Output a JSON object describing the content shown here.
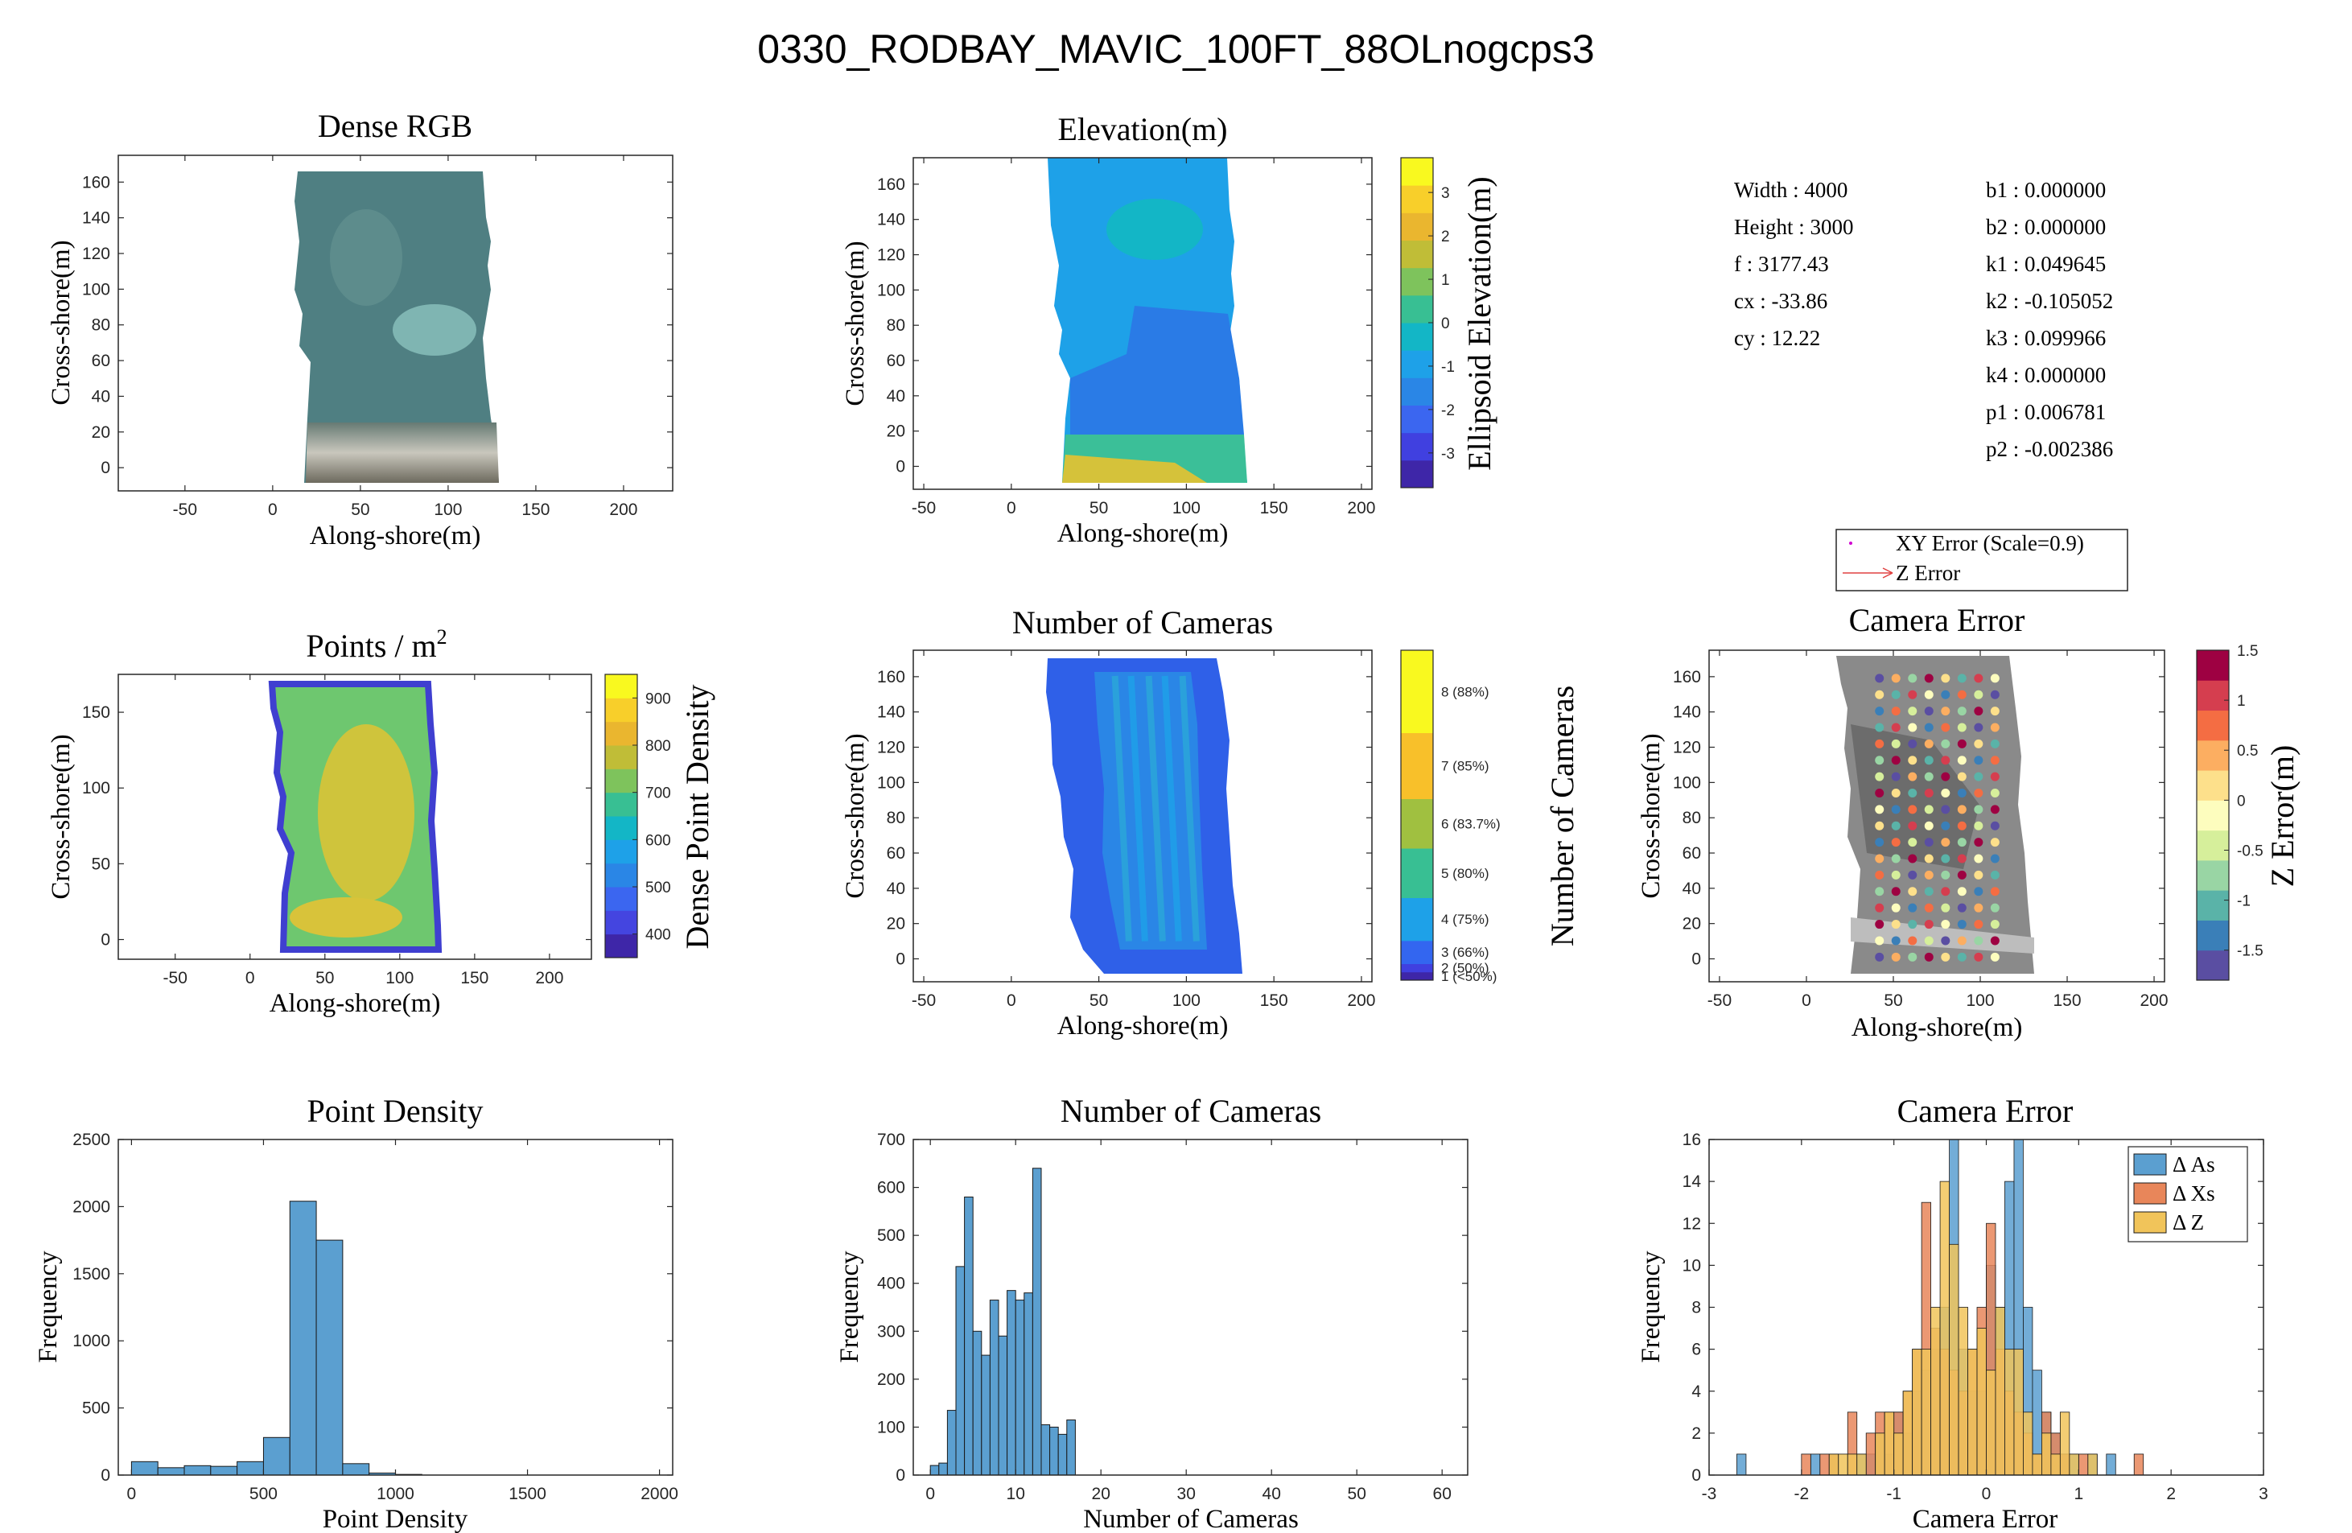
{
  "figure": {
    "title": "0330_RODBAY_MAVIC_100FT_88OLnogcps3",
    "colors": {
      "histogram_blue": "#5b9fd0",
      "histogram_orange": "#e8865a",
      "histogram_yellow": "#f1c45a",
      "rgb_water": "#4f7f82",
      "elevation_base": "#1ea1e8",
      "cameras_base": "#2f60e8"
    }
  },
  "intrinsics": {
    "left": [
      {
        "label": "Width",
        "value": "4000"
      },
      {
        "label": "Height",
        "value": "3000"
      },
      {
        "label": "f",
        "value": "3177.43"
      },
      {
        "label": "cx",
        "value": "-33.86"
      },
      {
        "label": "cy",
        "value": "12.22"
      }
    ],
    "right": [
      {
        "label": "b1",
        "value": "0.000000"
      },
      {
        "label": "b2",
        "value": "0.000000"
      },
      {
        "label": "k1",
        "value": "0.049645"
      },
      {
        "label": "k2",
        "value": "-0.105052"
      },
      {
        "label": "k3",
        "value": "0.099966"
      },
      {
        "label": "k4",
        "value": "0.000000"
      },
      {
        "label": "p1",
        "value": "0.006781"
      },
      {
        "label": "p2",
        "value": "-0.002386"
      }
    ]
  },
  "chart_data": [
    {
      "id": "dense-rgb",
      "type": "heatmap",
      "title": "Dense RGB",
      "xlabel": "Along-shore(m)",
      "ylabel": "Cross-shore(m)",
      "xlim": [
        -88,
        228
      ],
      "ylim": [
        -13,
        175
      ],
      "xticks": [
        -50,
        0,
        50,
        100,
        150,
        200
      ],
      "yticks": [
        0,
        20,
        40,
        60,
        80,
        100,
        120,
        140,
        160
      ]
    },
    {
      "id": "elevation",
      "type": "heatmap",
      "title": "Elevation(m)",
      "xlabel": "Along-shore(m)",
      "ylabel": "Cross-shore(m)",
      "xlim": [
        -56,
        206
      ],
      "ylim": [
        -13,
        175
      ],
      "xticks": [
        -50,
        0,
        50,
        100,
        150,
        200
      ],
      "yticks": [
        0,
        20,
        40,
        60,
        80,
        100,
        120,
        140,
        160
      ],
      "colorbar": {
        "label": "Ellipsoid Elevation(m)",
        "range": [
          -3.8,
          3.8
        ],
        "ticks": [
          "-3",
          "-2",
          "-1",
          "0",
          "1",
          "2",
          "3"
        ]
      }
    },
    {
      "id": "points-per-m2",
      "type": "heatmap",
      "title": "Points / m",
      "title_superscript": "2",
      "xlabel": "Along-shore(m)",
      "ylabel": "Cross-shore(m)",
      "xlim": [
        -88,
        228
      ],
      "ylim": [
        -13,
        175
      ],
      "xticks": [
        -50,
        0,
        50,
        100,
        150,
        200
      ],
      "yticks": [
        0,
        50,
        100,
        150
      ],
      "colorbar": {
        "label": "Dense Point Density",
        "range": [
          350,
          950
        ],
        "ticks": [
          "400",
          "500",
          "600",
          "700",
          "800",
          "900"
        ]
      }
    },
    {
      "id": "number-of-cameras-map",
      "type": "heatmap",
      "title": "Number of Cameras",
      "xlabel": "Along-shore(m)",
      "ylabel": "Cross-shore(m)",
      "xlim": [
        -56,
        206
      ],
      "ylim": [
        -13,
        175
      ],
      "xticks": [
        -50,
        0,
        50,
        100,
        150,
        200
      ],
      "yticks": [
        0,
        20,
        40,
        60,
        80,
        100,
        120,
        140,
        160
      ],
      "colorbar": {
        "label": "Number of Cameras",
        "ticks": [
          "1 (<50%)",
          "2 (50%)",
          "3 (66%)",
          "4 (75%)",
          "5 (80%)",
          "6 (83.7%)",
          "7 (85%)",
          "8 (88%)"
        ]
      }
    },
    {
      "id": "camera-error-map",
      "type": "scatter",
      "title": "Camera Error",
      "xlabel": "Along-shore(m)",
      "ylabel": "Cross-shore(m)",
      "xlim": [
        -56,
        206
      ],
      "ylim": [
        -13,
        175
      ],
      "xticks": [
        -50,
        0,
        50,
        100,
        150,
        200
      ],
      "yticks": [
        0,
        20,
        40,
        60,
        80,
        100,
        120,
        140,
        160
      ],
      "legend": [
        "XY Error (Scale=0.9)",
        "Z Error"
      ],
      "colorbar": {
        "label": "Z Error(m)",
        "range": [
          -1.8,
          1.5
        ],
        "ticks": [
          "-1.5",
          "-1",
          "-0.5",
          "0",
          "0.5",
          "1",
          "1.5"
        ]
      }
    },
    {
      "id": "point-density-hist",
      "type": "bar",
      "title": "Point Density",
      "xlabel": "Point Density",
      "ylabel": "Frequency",
      "xlim": [
        -50,
        2050
      ],
      "ylim": [
        0,
        2500
      ],
      "xticks": [
        0,
        500,
        1000,
        1500,
        2000
      ],
      "yticks": [
        0,
        500,
        1000,
        1500,
        2000,
        2500
      ],
      "bin_edges": [
        0,
        100,
        200,
        300,
        400,
        500,
        600,
        700,
        800,
        900,
        1000,
        1100
      ],
      "values": [
        100,
        55,
        70,
        65,
        100,
        280,
        2040,
        1750,
        85,
        15,
        5
      ]
    },
    {
      "id": "number-of-cameras-hist",
      "type": "bar",
      "title": "Number of Cameras",
      "xlabel": "Number of Cameras",
      "ylabel": "Frequency",
      "xlim": [
        -2,
        63
      ],
      "ylim": [
        0,
        700
      ],
      "xticks": [
        0,
        10,
        20,
        30,
        40,
        50,
        60
      ],
      "yticks": [
        0,
        100,
        200,
        300,
        400,
        500,
        600,
        700
      ],
      "bin_edges": [
        0,
        1,
        2,
        3,
        4,
        5,
        6,
        7,
        8,
        9,
        10,
        11,
        12,
        13,
        14,
        15,
        16,
        17
      ],
      "values": [
        20,
        25,
        135,
        435,
        580,
        300,
        250,
        365,
        290,
        385,
        365,
        380,
        640,
        105,
        100,
        85,
        115
      ]
    },
    {
      "id": "camera-error-hist",
      "type": "bar",
      "title": "Camera Error",
      "xlabel": "Camera Error",
      "ylabel": "Frequency",
      "xlim": [
        -3,
        3
      ],
      "ylim": [
        0,
        16
      ],
      "xticks": [
        -3,
        -2,
        -1,
        0,
        1,
        2,
        3
      ],
      "yticks": [
        0,
        2,
        4,
        6,
        8,
        10,
        12,
        14,
        16
      ],
      "bin_start": -2.7,
      "bin_width": 0.1,
      "legend": [
        "Δ As",
        "Δ Xs",
        "Δ Z"
      ],
      "series": [
        {
          "name": "Δ As",
          "values": [
            1,
            0,
            0,
            0,
            0,
            0,
            0,
            0,
            1,
            0,
            1,
            0,
            0,
            1,
            1,
            2,
            1,
            3,
            2,
            4,
            5,
            6,
            8,
            16,
            6,
            4,
            4,
            10,
            8,
            14,
            16,
            8,
            5,
            3,
            2,
            1,
            1,
            0,
            1,
            0,
            1,
            0,
            0,
            0
          ]
        },
        {
          "name": "Δ Xs",
          "values": [
            0,
            0,
            0,
            0,
            0,
            0,
            0,
            1,
            0,
            1,
            1,
            0,
            3,
            0,
            2,
            3,
            3,
            3,
            4,
            6,
            13,
            7,
            6,
            5,
            4,
            6,
            8,
            12,
            6,
            4,
            3,
            2,
            1,
            3,
            2,
            1,
            0,
            1,
            0,
            0,
            0,
            0,
            0,
            1
          ]
        },
        {
          "name": "Δ Z",
          "values": [
            0,
            0,
            0,
            0,
            0,
            0,
            0,
            0,
            0,
            0,
            1,
            1,
            1,
            1,
            0,
            2,
            3,
            2,
            4,
            6,
            6,
            8,
            14,
            11,
            8,
            6,
            7,
            5,
            8,
            6,
            6,
            3,
            1,
            2,
            1,
            3,
            1,
            0,
            1,
            0,
            0,
            0,
            0,
            0
          ]
        }
      ]
    }
  ]
}
